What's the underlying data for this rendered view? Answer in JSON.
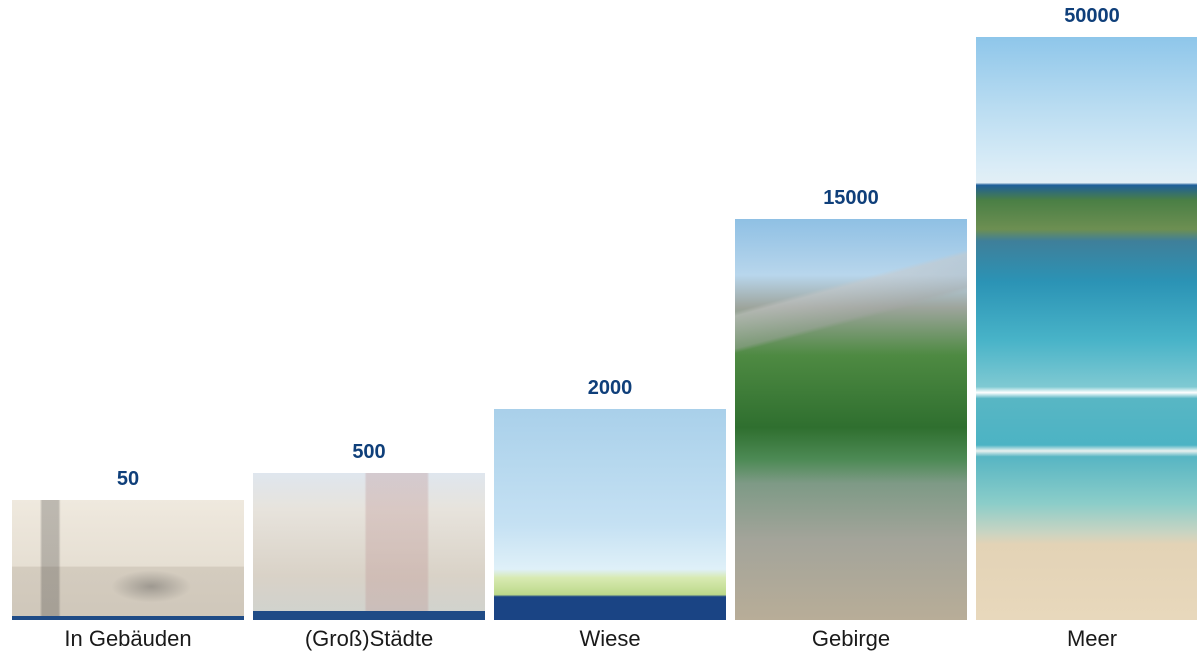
{
  "chart_data": {
    "type": "bar",
    "categories": [
      "In Gebäuden",
      "(Groß)Städte",
      "Wiese",
      "Gebirge",
      "Meer"
    ],
    "values": [
      50,
      500,
      2000,
      15000,
      50000
    ],
    "value_labels": [
      "50",
      "500",
      "2000",
      "15000",
      "50000"
    ],
    "title": "",
    "xlabel": "",
    "ylabel": "",
    "ylim": [
      0,
      50000
    ],
    "grid": false,
    "legend": "none",
    "colors": {
      "value_label": "#0f3f7a",
      "accent_bar": "#1f4b86"
    }
  }
}
